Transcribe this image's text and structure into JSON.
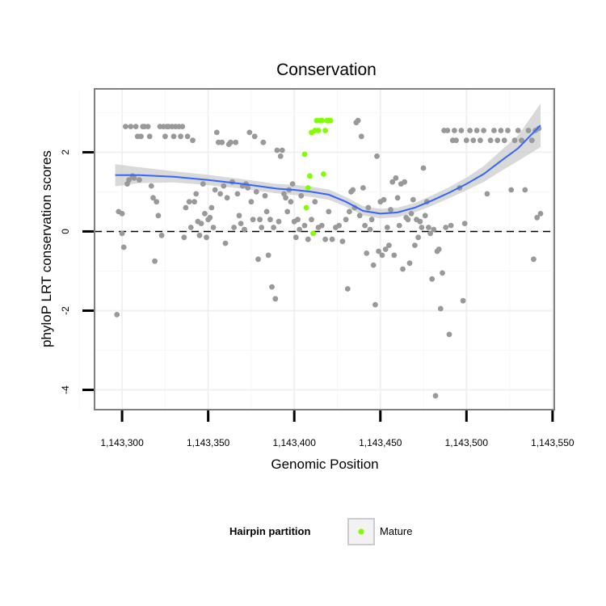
{
  "chart_data": {
    "type": "scatter",
    "title": "Conservation",
    "xlabel": "Genomic Position",
    "ylabel": "phyloP LRT conservation scores",
    "xlim": [
      1143284,
      1143551
    ],
    "ylim": [
      -4.5,
      3.6
    ],
    "x_ticks": [
      1143300,
      1143350,
      1143400,
      1143450,
      1143500,
      1143550
    ],
    "x_tick_labels": [
      "1,143,300",
      "1,143,350",
      "1,143,400",
      "1,143,450",
      "1,143,500",
      "1,143,550"
    ],
    "y_ticks": [
      -4,
      -2,
      0,
      2
    ],
    "y_tick_labels": [
      "-4",
      "-2",
      "0",
      "2"
    ],
    "grid": true,
    "reference_line": {
      "y": 0,
      "style": "dashed"
    },
    "legend": {
      "title": "Hairpin partition",
      "position": "bottom",
      "entries": [
        {
          "label": "Mature",
          "color": "#7fff00"
        }
      ]
    },
    "colors": {
      "point_other": "#999999",
      "mature": "#7fff00",
      "smooth": "#3366ff",
      "ribbon": "#cccccc"
    },
    "series": [
      {
        "role": "other",
        "points": [
          [
            1143297,
            -2.1
          ],
          [
            1143298,
            0.5
          ],
          [
            1143300,
            0.45
          ],
          [
            1143300,
            -0.05
          ],
          [
            1143301,
            -0.4
          ],
          [
            1143302,
            2.65
          ],
          [
            1143303,
            1.2
          ],
          [
            1143304,
            1.3
          ],
          [
            1143305,
            2.65
          ],
          [
            1143306,
            1.4
          ],
          [
            1143307,
            1.35
          ],
          [
            1143308,
            2.65
          ],
          [
            1143309,
            2.4
          ],
          [
            1143310,
            1.3
          ],
          [
            1143311,
            2.4
          ],
          [
            1143312,
            2.65
          ],
          [
            1143313,
            2.65
          ],
          [
            1143315,
            2.65
          ],
          [
            1143316,
            2.4
          ],
          [
            1143317,
            1.15
          ],
          [
            1143318,
            0.85
          ],
          [
            1143319,
            -0.75
          ],
          [
            1143320,
            0.75
          ],
          [
            1143321,
            0.4
          ],
          [
            1143322,
            2.65
          ],
          [
            1143323,
            -0.1
          ],
          [
            1143324,
            2.65
          ],
          [
            1143325,
            2.4
          ],
          [
            1143326,
            2.65
          ],
          [
            1143327,
            2.65
          ],
          [
            1143329,
            2.65
          ],
          [
            1143330,
            2.4
          ],
          [
            1143331,
            2.65
          ],
          [
            1143333,
            2.65
          ],
          [
            1143334,
            2.4
          ],
          [
            1143335,
            2.65
          ],
          [
            1143336,
            -0.15
          ],
          [
            1143337,
            0.6
          ],
          [
            1143338,
            2.4
          ],
          [
            1143339,
            0.75
          ],
          [
            1143340,
            0.1
          ],
          [
            1143341,
            2.3
          ],
          [
            1143342,
            0.75
          ],
          [
            1143343,
            0.95
          ],
          [
            1143344,
            0.25
          ],
          [
            1143345,
            -0.1
          ],
          [
            1143346,
            0.2
          ],
          [
            1143347,
            1.2
          ],
          [
            1143348,
            0.45
          ],
          [
            1143349,
            -0.15
          ],
          [
            1143350,
            0.3
          ],
          [
            1143351,
            0.35
          ],
          [
            1143352,
            0.6
          ],
          [
            1143353,
            0.1
          ],
          [
            1143354,
            1.05
          ],
          [
            1143355,
            2.5
          ],
          [
            1143356,
            2.25
          ],
          [
            1143357,
            0.95
          ],
          [
            1143358,
            2.25
          ],
          [
            1143359,
            1.15
          ],
          [
            1143360,
            -0.3
          ],
          [
            1143361,
            0.85
          ],
          [
            1143362,
            2.2
          ],
          [
            1143363,
            2.25
          ],
          [
            1143364,
            1.25
          ],
          [
            1143365,
            0.1
          ],
          [
            1143366,
            2.25
          ],
          [
            1143367,
            0.95
          ],
          [
            1143368,
            0.4
          ],
          [
            1143369,
            0.2
          ],
          [
            1143370,
            1.15
          ],
          [
            1143371,
            0.05
          ],
          [
            1143372,
            1.2
          ],
          [
            1143373,
            1.1
          ],
          [
            1143374,
            2.5
          ],
          [
            1143375,
            0.75
          ],
          [
            1143376,
            0.3
          ],
          [
            1143377,
            2.4
          ],
          [
            1143378,
            1.0
          ],
          [
            1143379,
            -0.7
          ],
          [
            1143380,
            0.3
          ],
          [
            1143381,
            0.1
          ],
          [
            1143382,
            2.25
          ],
          [
            1143383,
            0.9
          ],
          [
            1143384,
            0.5
          ],
          [
            1143385,
            -0.6
          ],
          [
            1143386,
            0.3
          ],
          [
            1143387,
            -1.4
          ],
          [
            1143388,
            0.1
          ],
          [
            1143389,
            -1.7
          ],
          [
            1143390,
            2.05
          ],
          [
            1143391,
            0.25
          ],
          [
            1143392,
            1.9
          ],
          [
            1143393,
            2.05
          ],
          [
            1143394,
            0.95
          ],
          [
            1143395,
            0.85
          ],
          [
            1143396,
            0.5
          ],
          [
            1143397,
            1.05
          ],
          [
            1143398,
            0.75
          ],
          [
            1143399,
            1.2
          ],
          [
            1143400,
            0.25
          ],
          [
            1143401,
            -0.15
          ],
          [
            1143402,
            0.3
          ],
          [
            1143403,
            0.05
          ],
          [
            1143404,
            0.9
          ],
          [
            1143406,
            0.15
          ],
          [
            1143408,
            -0.2
          ],
          [
            1143410,
            0.3
          ],
          [
            1143412,
            0.75
          ],
          [
            1143414,
            0.1
          ],
          [
            1143416,
            0.15
          ],
          [
            1143418,
            -0.2
          ],
          [
            1143420,
            0.5
          ],
          [
            1143422,
            -0.2
          ],
          [
            1143424,
            0.1
          ],
          [
            1143426,
            0.15
          ],
          [
            1143428,
            -0.25
          ],
          [
            1143430,
            0.3
          ],
          [
            1143431,
            -1.45
          ],
          [
            1143432,
            0.5
          ],
          [
            1143433,
            1.0
          ],
          [
            1143434,
            1.05
          ],
          [
            1143435,
            0.6
          ],
          [
            1143436,
            2.75
          ],
          [
            1143437,
            2.8
          ],
          [
            1143438,
            0.4
          ],
          [
            1143439,
            2.4
          ],
          [
            1143440,
            1.1
          ],
          [
            1143441,
            0.15
          ],
          [
            1143442,
            -0.55
          ],
          [
            1143443,
            0.6
          ],
          [
            1143444,
            0.05
          ],
          [
            1143445,
            0.3
          ],
          [
            1143446,
            -0.85
          ],
          [
            1143447,
            -1.85
          ],
          [
            1143448,
            1.9
          ],
          [
            1143449,
            -0.5
          ],
          [
            1143450,
            0.75
          ],
          [
            1143451,
            -0.6
          ],
          [
            1143452,
            0.8
          ],
          [
            1143453,
            -0.45
          ],
          [
            1143454,
            0.1
          ],
          [
            1143455,
            -0.35
          ],
          [
            1143456,
            0.55
          ],
          [
            1143457,
            1.25
          ],
          [
            1143458,
            -0.6
          ],
          [
            1143459,
            1.35
          ],
          [
            1143460,
            0.85
          ],
          [
            1143461,
            0.15
          ],
          [
            1143462,
            1.2
          ],
          [
            1143463,
            -0.95
          ],
          [
            1143464,
            1.25
          ],
          [
            1143465,
            0.35
          ],
          [
            1143466,
            0.3
          ],
          [
            1143467,
            -0.8
          ],
          [
            1143468,
            0.45
          ],
          [
            1143469,
            0.8
          ],
          [
            1143470,
            -0.35
          ],
          [
            1143471,
            0.3
          ],
          [
            1143472,
            -0.15
          ],
          [
            1143473,
            0.25
          ],
          [
            1143474,
            0.1
          ],
          [
            1143475,
            1.6
          ],
          [
            1143476,
            0.4
          ],
          [
            1143477,
            0.75
          ],
          [
            1143478,
            0.1
          ],
          [
            1143479,
            -0.05
          ],
          [
            1143480,
            -1.2
          ],
          [
            1143481,
            0.05
          ],
          [
            1143482,
            -4.15
          ],
          [
            1143483,
            -0.5
          ],
          [
            1143484,
            -0.45
          ],
          [
            1143485,
            -1.95
          ],
          [
            1143486,
            -1.05
          ],
          [
            1143487,
            2.55
          ],
          [
            1143488,
            0.1
          ],
          [
            1143489,
            2.55
          ],
          [
            1143490,
            -2.6
          ],
          [
            1143491,
            0.15
          ],
          [
            1143492,
            2.3
          ],
          [
            1143493,
            2.55
          ],
          [
            1143494,
            2.3
          ],
          [
            1143496,
            1.1
          ],
          [
            1143497,
            2.55
          ],
          [
            1143498,
            -1.75
          ],
          [
            1143499,
            0.2
          ],
          [
            1143500,
            2.3
          ],
          [
            1143502,
            2.55
          ],
          [
            1143504,
            2.3
          ],
          [
            1143506,
            2.55
          ],
          [
            1143508,
            2.3
          ],
          [
            1143510,
            2.55
          ],
          [
            1143512,
            0.95
          ],
          [
            1143514,
            2.3
          ],
          [
            1143516,
            2.55
          ],
          [
            1143518,
            2.3
          ],
          [
            1143520,
            2.55
          ],
          [
            1143522,
            2.3
          ],
          [
            1143524,
            2.55
          ],
          [
            1143526,
            1.05
          ],
          [
            1143528,
            2.3
          ],
          [
            1143530,
            2.55
          ],
          [
            1143532,
            2.3
          ],
          [
            1143534,
            1.05
          ],
          [
            1143536,
            2.55
          ],
          [
            1143538,
            2.3
          ],
          [
            1143539,
            -0.7
          ],
          [
            1143540,
            2.55
          ],
          [
            1143541,
            0.35
          ],
          [
            1143542,
            2.6
          ],
          [
            1143543,
            0.45
          ]
        ]
      },
      {
        "name": "Mature",
        "role": "mature",
        "points": [
          [
            1143406,
            1.95
          ],
          [
            1143407,
            0.6
          ],
          [
            1143408,
            1.1
          ],
          [
            1143409,
            1.4
          ],
          [
            1143410,
            2.5
          ],
          [
            1143411,
            -0.05
          ],
          [
            1143412,
            2.55
          ],
          [
            1143413,
            2.8
          ],
          [
            1143414,
            2.55
          ],
          [
            1143415,
            2.8
          ],
          [
            1143416,
            2.8
          ],
          [
            1143417,
            1.45
          ],
          [
            1143418,
            2.55
          ],
          [
            1143419,
            2.8
          ],
          [
            1143420,
            2.8
          ],
          [
            1143421,
            2.8
          ]
        ]
      }
    ],
    "smooth": {
      "method": "loess",
      "points": [
        [
          1143296,
          1.42
        ],
        [
          1143310,
          1.42
        ],
        [
          1143330,
          1.38
        ],
        [
          1143350,
          1.3
        ],
        [
          1143370,
          1.2
        ],
        [
          1143390,
          1.08
        ],
        [
          1143400,
          1.05
        ],
        [
          1143410,
          1.0
        ],
        [
          1143420,
          0.93
        ],
        [
          1143430,
          0.75
        ],
        [
          1143440,
          0.52
        ],
        [
          1143450,
          0.45
        ],
        [
          1143460,
          0.48
        ],
        [
          1143470,
          0.6
        ],
        [
          1143480,
          0.78
        ],
        [
          1143490,
          0.98
        ],
        [
          1143500,
          1.2
        ],
        [
          1143510,
          1.45
        ],
        [
          1143520,
          1.78
        ],
        [
          1143530,
          2.1
        ],
        [
          1143543,
          2.68
        ]
      ],
      "ribbon_half_width": [
        0.28,
        0.2,
        0.14,
        0.13,
        0.12,
        0.12,
        0.13,
        0.13,
        0.13,
        0.12,
        0.12,
        0.12,
        0.12,
        0.12,
        0.13,
        0.14,
        0.16,
        0.2,
        0.26,
        0.32,
        0.55
      ]
    }
  }
}
